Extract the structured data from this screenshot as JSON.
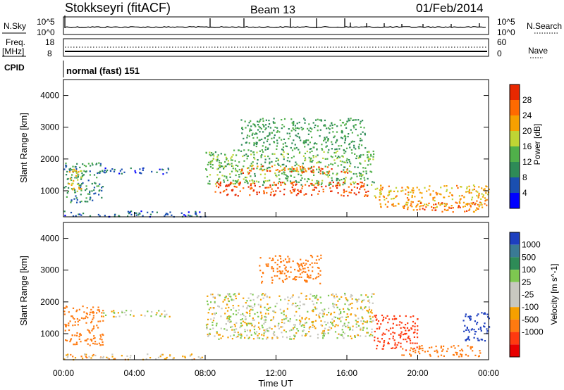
{
  "header": {
    "station": "Stokkseyri (fitACF)",
    "beam": "Beam 13",
    "date": "01/Feb/2014"
  },
  "panels": {
    "nsky": {
      "left_label": "N.Sky",
      "top_tick": "10^5",
      "bottom_tick": "10^0",
      "right_top_tick": "10^5",
      "right_bottom_tick": "10^0",
      "right_label": "N.Search"
    },
    "freq": {
      "label_line1": "Freq.",
      "label_line2": "[MHz]",
      "top_tick": "18",
      "bottom_tick": "8",
      "right_top_tick": "60",
      "right_bottom_tick": "0",
      "right_label": "Nave"
    },
    "cpid": {
      "label": "CPID",
      "value": "normal (fast) 151"
    }
  },
  "colors": {
    "power": [
      "#0000ff",
      "#1a4fb0",
      "#2e8b57",
      "#50b04a",
      "#bfd534",
      "#f6a000",
      "#ff6a00",
      "#e82800"
    ],
    "velocity": [
      "#1d3fbf",
      "#3a7a94",
      "#2e8b57",
      "#7ec850",
      "#c8c8c0",
      "#c8c8c0",
      "#f6a000",
      "#ff7a10",
      "#ff3a10",
      "#e80000"
    ]
  },
  "chart_data": [
    {
      "type": "heatmap",
      "title": "Power",
      "ylabel": "Slant Range [km]",
      "xlim": [
        0,
        24
      ],
      "ylim": [
        180,
        4500
      ],
      "yticks": [
        "1000",
        "2000",
        "3000",
        "4000"
      ],
      "colorbar": {
        "label": "Power [dB]",
        "ticks": [
          "4",
          "8",
          "12",
          "16",
          "20",
          "24",
          "28"
        ],
        "range": [
          0,
          32
        ]
      },
      "regions": [
        {
          "t0": 0.0,
          "t1": 2.2,
          "r0": 650,
          "r1": 1900,
          "value": 10
        },
        {
          "t0": 0.1,
          "t1": 1.0,
          "r0": 1000,
          "r1": 1700,
          "value": 20
        },
        {
          "t0": 2.2,
          "t1": 6.0,
          "r0": 1550,
          "r1": 1750,
          "value": 6
        },
        {
          "t0": 8.0,
          "t1": 17.5,
          "r0": 1200,
          "r1": 2300,
          "value": 14
        },
        {
          "t0": 8.5,
          "t1": 17.2,
          "r0": 850,
          "r1": 1300,
          "value": 28
        },
        {
          "t0": 10.0,
          "t1": 16.0,
          "r0": 1550,
          "r1": 1800,
          "value": 26
        },
        {
          "t0": 17.5,
          "t1": 24.0,
          "r0": 500,
          "r1": 1200,
          "value": 22
        },
        {
          "t0": 19.0,
          "t1": 23.5,
          "r0": 350,
          "r1": 650,
          "value": 26
        },
        {
          "t0": 10.0,
          "t1": 17.0,
          "r0": 2300,
          "r1": 3300,
          "value": 12
        },
        {
          "t0": 0.0,
          "t1": 8.0,
          "r0": 200,
          "r1": 380,
          "value": 6
        }
      ]
    },
    {
      "type": "heatmap",
      "title": "Velocity",
      "xlabel": "Time UT",
      "ylabel": "Slant Range [km]",
      "xlim": [
        0,
        24
      ],
      "ylim": [
        180,
        4500
      ],
      "xticks": [
        "00:00",
        "04:00",
        "08:00",
        "12:00",
        "16:00",
        "20:00",
        "00:00"
      ],
      "yticks": [
        "1000",
        "2000",
        "3000",
        "4000"
      ],
      "colorbar": {
        "label": "Velocity [m s^-1]",
        "ticks": [
          "1000",
          "500",
          "100",
          "25",
          "-25",
          "-100",
          "-500",
          "-1000"
        ]
      },
      "regions": [
        {
          "t0": 0.0,
          "t1": 2.2,
          "r0": 650,
          "r1": 1900,
          "value": -300
        },
        {
          "t0": 2.2,
          "t1": 6.0,
          "r0": 1550,
          "r1": 1750,
          "value": 0
        },
        {
          "t0": 8.0,
          "t1": 17.5,
          "r0": 850,
          "r1": 2300,
          "value": 0
        },
        {
          "t0": 11.0,
          "t1": 14.5,
          "r0": 2600,
          "r1": 3500,
          "value": -200
        },
        {
          "t0": 17.5,
          "t1": 20.0,
          "r0": 500,
          "r1": 1600,
          "value": -700
        },
        {
          "t0": 19.0,
          "t1": 23.5,
          "r0": 300,
          "r1": 650,
          "value": -400
        },
        {
          "t0": 22.5,
          "t1": 24.0,
          "r0": 800,
          "r1": 1700,
          "value": 600
        },
        {
          "t0": 0.0,
          "t1": 8.0,
          "r0": 200,
          "r1": 380,
          "value": -50
        }
      ]
    }
  ]
}
